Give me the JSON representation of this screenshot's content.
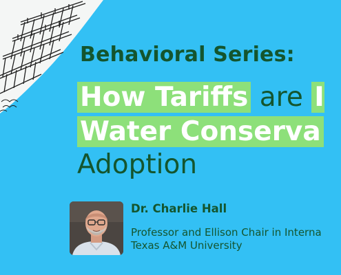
{
  "series_label": "Behavioral Series:",
  "title": {
    "line1_highlight": "How Tariffs",
    "line1_plain": "are I",
    "line1_tail_highlight": "",
    "line2_highlight": "Water Conserva",
    "line3_plain": "Adoption"
  },
  "speaker": {
    "name": "Dr. Charlie Hall",
    "role": "Professor and Ellison Chair in Interna",
    "organization": "Texas A&M University",
    "photo_icon": "person-headshot-photo"
  },
  "colors": {
    "background": "#33c0f4",
    "dark_green": "#14552e",
    "highlight_green": "#8de07a",
    "white": "#ffffff"
  }
}
